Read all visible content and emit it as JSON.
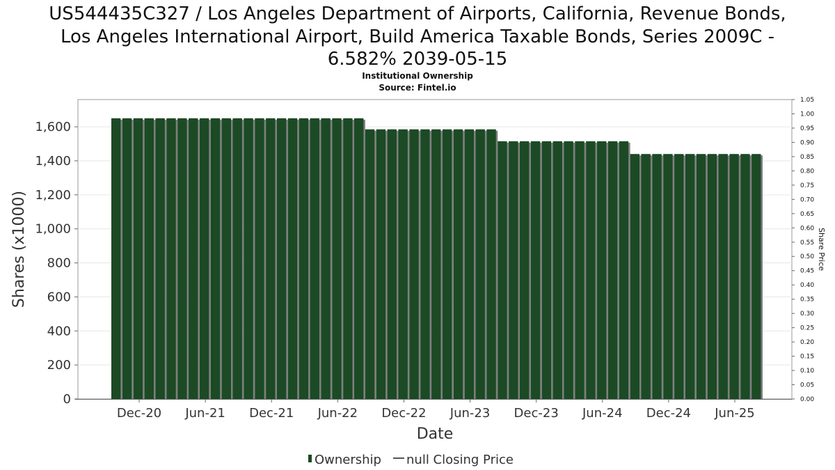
{
  "chart_data": {
    "type": "bar",
    "title_lines": [
      "US544435C327 / Los Angeles Department of Airports, California, Revenue Bonds,",
      "Los Angeles International Airport, Build America Taxable Bonds, Series 2009C -",
      "6.582% 2039-05-15"
    ],
    "subtitle_lines": [
      "Institutional Ownership",
      "Source: Fintel.io"
    ],
    "xlabel": "Date",
    "ylabel": "Shares (x1000)",
    "y2label": "Share Price",
    "ylim": [
      0,
      1760
    ],
    "yticks": [
      0,
      200,
      400,
      600,
      800,
      1000,
      1200,
      1400,
      1600
    ],
    "ytick_labels": [
      "0",
      "200",
      "400",
      "600",
      "800",
      "1,000",
      "1,200",
      "1,400",
      "1,600"
    ],
    "y2lim": [
      0,
      1.05
    ],
    "y2ticks": [
      0.0,
      0.05,
      0.1,
      0.15,
      0.2,
      0.25,
      0.3,
      0.35,
      0.4,
      0.45,
      0.5,
      0.55,
      0.6,
      0.65,
      0.7,
      0.75,
      0.8,
      0.85,
      0.9,
      0.95,
      1.0,
      1.05
    ],
    "y2tick_labels": [
      "0.00",
      "0.05",
      "0.10",
      "0.15",
      "0.20",
      "0.25",
      "0.30",
      "0.35",
      "0.40",
      "0.45",
      "0.50",
      "0.55",
      "0.60",
      "0.65",
      "0.70",
      "0.75",
      "0.80",
      "0.85",
      "0.90",
      "0.95",
      "1.00",
      "1.05"
    ],
    "xtick_labels": [
      "Dec-20",
      "Jun-21",
      "Dec-21",
      "Jun-22",
      "Dec-22",
      "Jun-23",
      "Dec-23",
      "Jun-24",
      "Dec-24",
      "Jun-25"
    ],
    "grid": true,
    "legend_position": "bottom-center",
    "series": [
      {
        "name": "Ownership",
        "color": "#1b4a25",
        "shadow_color": "#7f7f7f",
        "values": [
          1650,
          1650,
          1650,
          1650,
          1650,
          1650,
          1650,
          1650,
          1650,
          1650,
          1650,
          1650,
          1650,
          1650,
          1650,
          1650,
          1650,
          1650,
          1650,
          1650,
          1650,
          1650,
          1650,
          1585,
          1585,
          1585,
          1585,
          1585,
          1585,
          1585,
          1585,
          1585,
          1585,
          1585,
          1585,
          1515,
          1515,
          1515,
          1515,
          1515,
          1515,
          1515,
          1515,
          1515,
          1515,
          1515,
          1515,
          1440,
          1440,
          1440,
          1440,
          1440,
          1440,
          1440,
          1440,
          1440,
          1440,
          1440,
          1440
        ]
      }
    ],
    "legend": [
      {
        "label": "Ownership",
        "kind": "bar",
        "color": "#1b4a25"
      },
      {
        "label": "null Closing Price",
        "kind": "line",
        "color": "#555555"
      }
    ]
  }
}
